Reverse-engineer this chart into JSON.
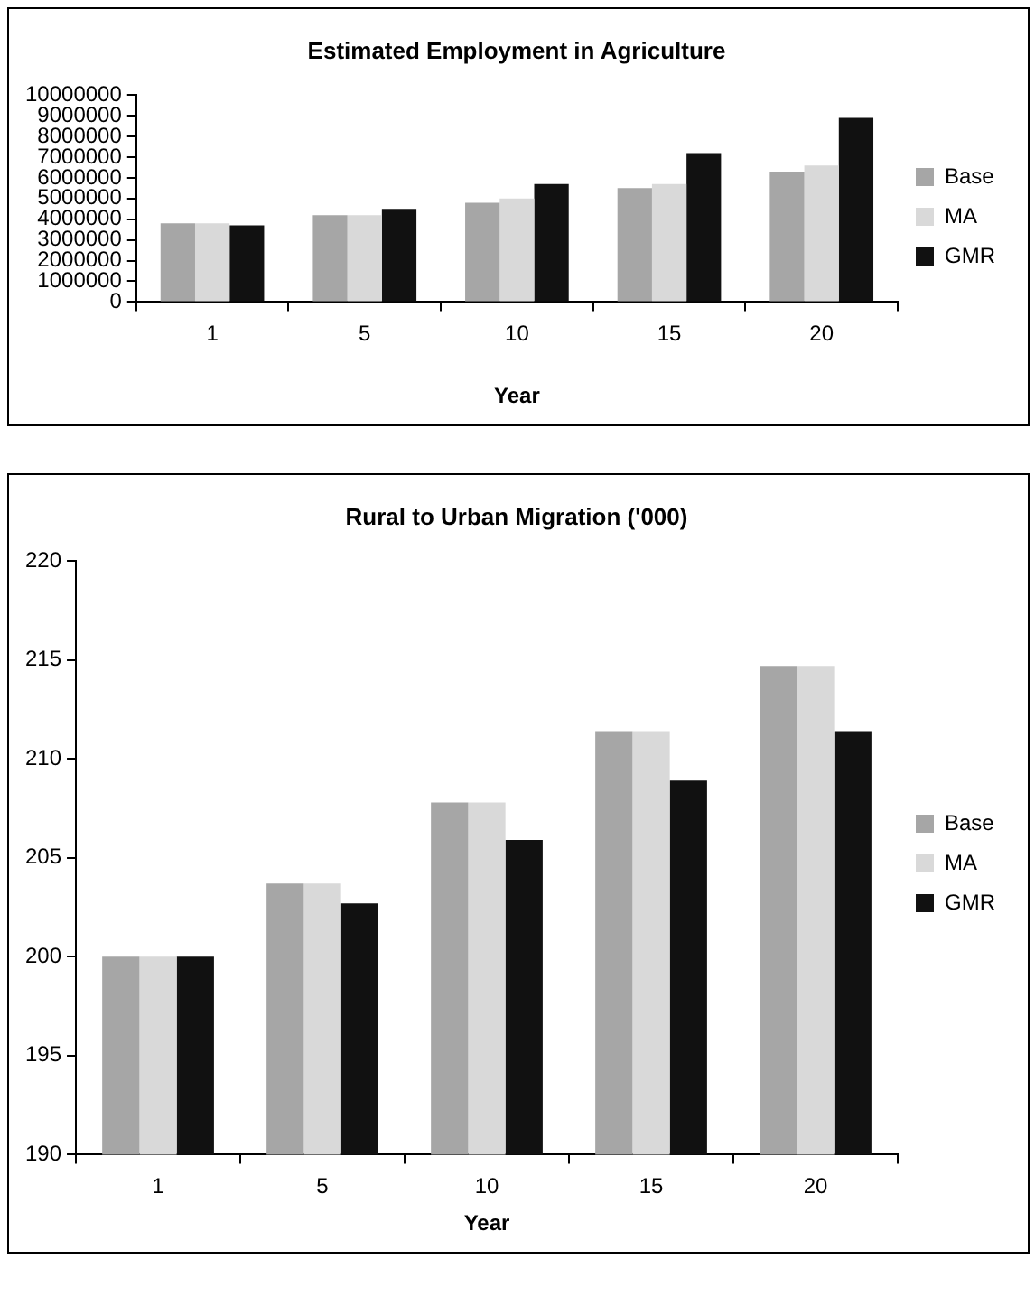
{
  "chart_data": [
    {
      "type": "bar",
      "title": "Estimated Employment in Agriculture",
      "xlabel": "Year",
      "categories": [
        "1",
        "5",
        "10",
        "15",
        "20"
      ],
      "series": [
        {
          "name": "Base",
          "color": "#a6a6a6",
          "values": [
            3800000,
            4200000,
            4800000,
            5500000,
            6300000
          ]
        },
        {
          "name": "MA",
          "color": "#d9d9d9",
          "values": [
            3800000,
            4200000,
            5000000,
            5700000,
            6600000
          ]
        },
        {
          "name": "GMR",
          "color": "#111111",
          "values": [
            3700000,
            4500000,
            5700000,
            7200000,
            8900000
          ]
        }
      ],
      "ylim": [
        0,
        10000000
      ],
      "yticks": [
        0,
        1000000,
        2000000,
        3000000,
        4000000,
        5000000,
        6000000,
        7000000,
        8000000,
        9000000,
        10000000
      ],
      "grid": false,
      "legend": "right"
    },
    {
      "type": "bar",
      "title": "Rural to Urban Migration ('000)",
      "xlabel": "Year",
      "categories": [
        "1",
        "5",
        "10",
        "15",
        "20"
      ],
      "series": [
        {
          "name": "Base",
          "color": "#a6a6a6",
          "values": [
            200.0,
            203.7,
            207.8,
            211.4,
            214.7
          ]
        },
        {
          "name": "MA",
          "color": "#d9d9d9",
          "values": [
            200.0,
            203.7,
            207.8,
            211.4,
            214.7
          ]
        },
        {
          "name": "GMR",
          "color": "#111111",
          "values": [
            200.0,
            202.7,
            205.9,
            208.9,
            211.4
          ]
        }
      ],
      "ylim": [
        190,
        220
      ],
      "yticks": [
        190,
        195,
        200,
        205,
        210,
        215,
        220
      ],
      "grid": false,
      "legend": "right"
    }
  ]
}
